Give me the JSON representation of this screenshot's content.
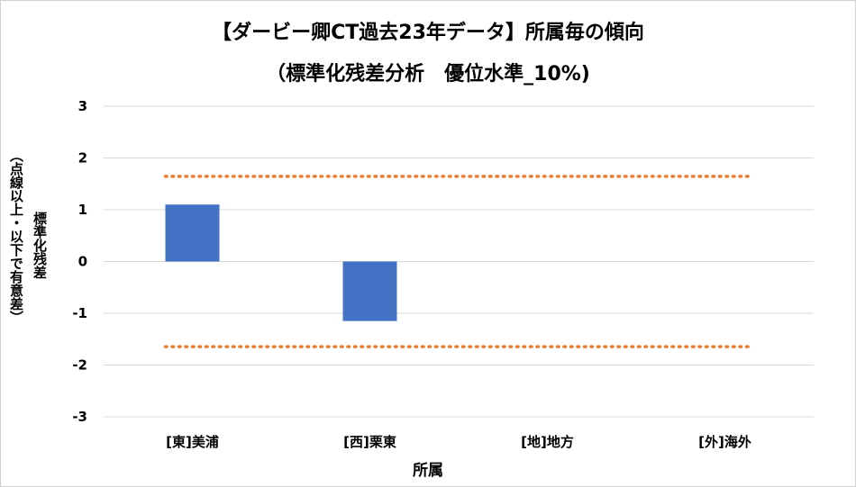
{
  "chart_data": {
    "type": "bar",
    "title": "【ダービー卿CT過去23年データ】所属毎の傾向",
    "subtitle": "（標準化残差分析　優位水準_10%)",
    "xlabel": "所属",
    "ylabel": "標準化残差",
    "ylabel_sub": "（点線以上・以下で有意差）",
    "categories": [
      "[東]美浦",
      "[西]栗東",
      "[地]地方",
      "[外]海外"
    ],
    "values": [
      1.1,
      -1.15,
      0,
      0
    ],
    "ylim": [
      -3,
      3
    ],
    "yticks": [
      "3",
      "2",
      "1",
      "0",
      "-1",
      "-2",
      "-3"
    ],
    "threshold_upper": 1.645,
    "threshold_lower": -1.645,
    "grid": true,
    "bar_color": "#4472c4",
    "threshold_color": "#ed7d31",
    "grid_color": "#d9d9d9"
  }
}
